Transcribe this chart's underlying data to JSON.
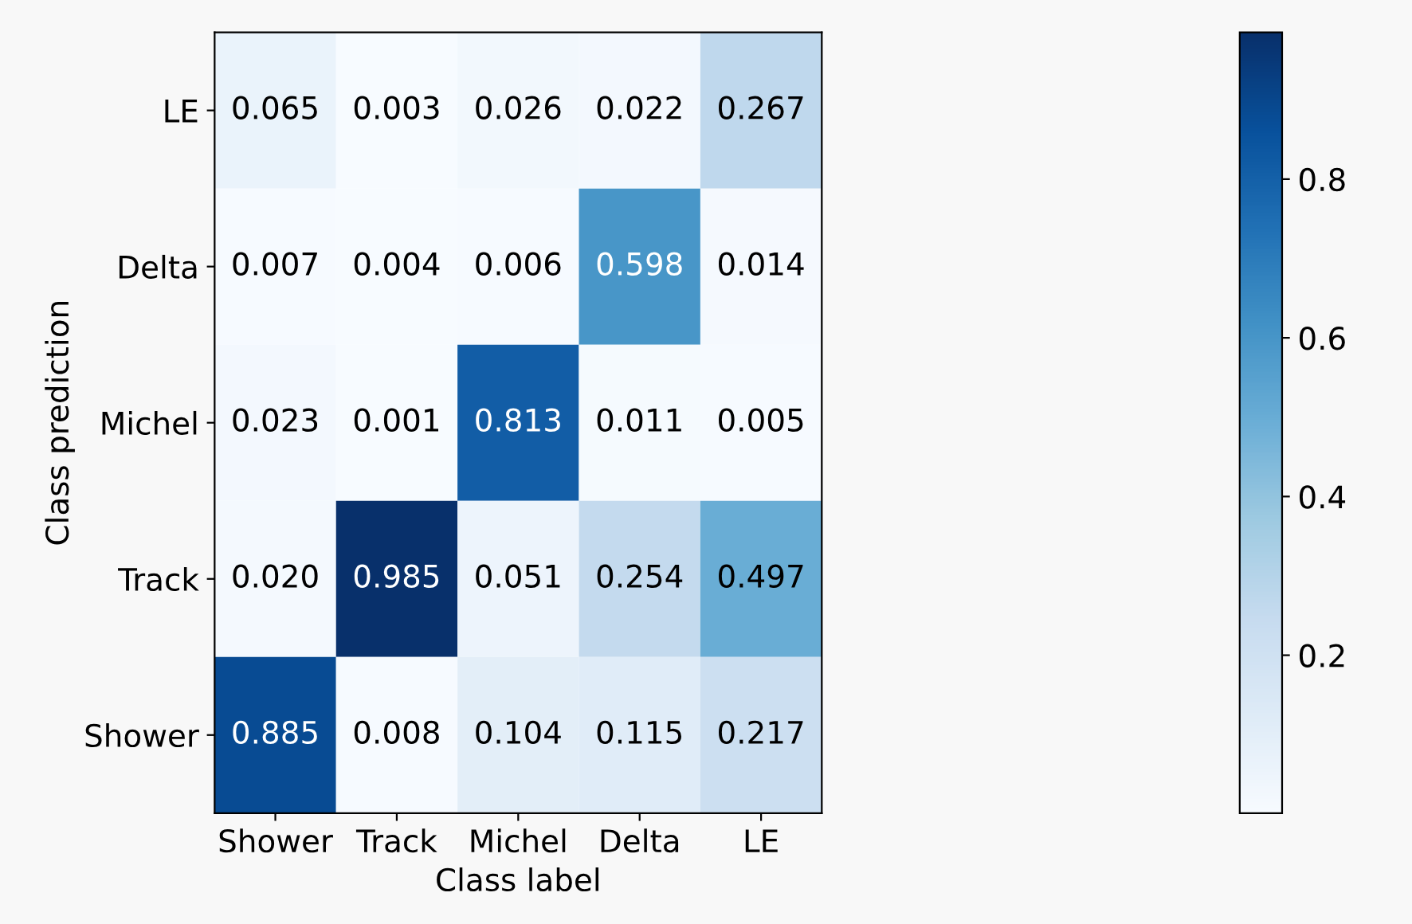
{
  "chart_data": {
    "type": "heatmap",
    "xlabel": "Class label",
    "ylabel": "Class prediction",
    "categories": [
      "Shower",
      "Track",
      "Michel",
      "Delta",
      "LE"
    ],
    "y_categories": [
      "LE",
      "Delta",
      "Michel",
      "Track",
      "Shower"
    ],
    "cells": [
      [
        0.065,
        0.003,
        0.026,
        0.022,
        0.267
      ],
      [
        0.007,
        0.004,
        0.006,
        0.598,
        0.014
      ],
      [
        0.023,
        0.001,
        0.813,
        0.011,
        0.005
      ],
      [
        0.02,
        0.985,
        0.051,
        0.254,
        0.497
      ],
      [
        0.885,
        0.008,
        0.104,
        0.115,
        0.217
      ]
    ],
    "cell_labels": [
      [
        "0.065",
        "0.003",
        "0.026",
        "0.022",
        "0.267"
      ],
      [
        "0.007",
        "0.004",
        "0.006",
        "0.598",
        "0.014"
      ],
      [
        "0.023",
        "0.001",
        "0.813",
        "0.011",
        "0.005"
      ],
      [
        "0.020",
        "0.985",
        "0.051",
        "0.254",
        "0.497"
      ],
      [
        "0.885",
        "0.008",
        "0.104",
        "0.115",
        "0.217"
      ]
    ],
    "clim": [
      0.001,
      0.985
    ],
    "cticks": [
      0.2,
      0.4,
      0.6,
      0.8
    ]
  }
}
